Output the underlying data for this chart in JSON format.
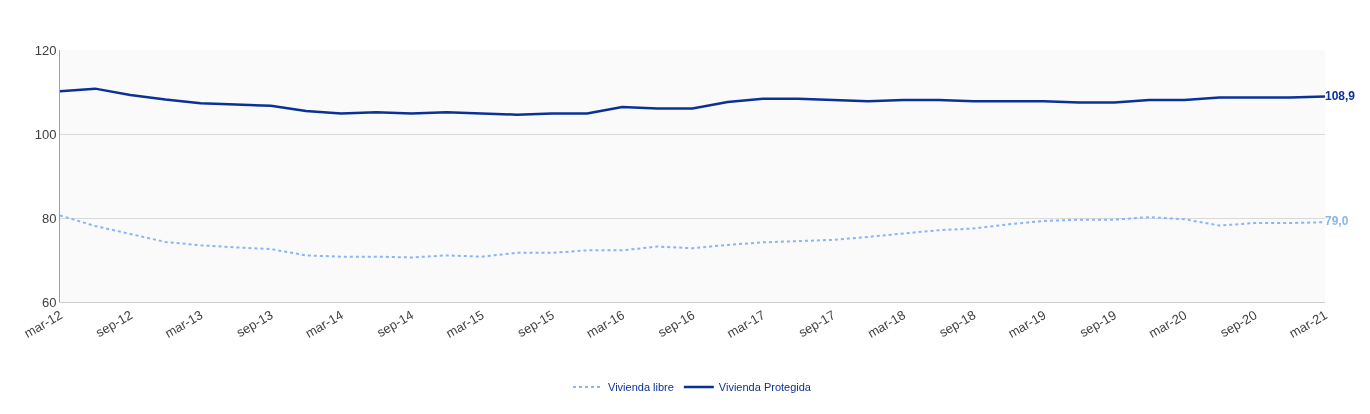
{
  "chart_data": {
    "type": "line",
    "categories": [
      "mar-12",
      null,
      "sep-12",
      null,
      "mar-13",
      null,
      "sep-13",
      null,
      "mar-14",
      null,
      "sep-14",
      null,
      "mar-15",
      null,
      "sep-15",
      null,
      "mar-16",
      null,
      "sep-16",
      null,
      "mar-17",
      null,
      "sep-17",
      null,
      "mar-18",
      null,
      "sep-18",
      null,
      "mar-19",
      null,
      "sep-19",
      null,
      "mar-20",
      null,
      "sep-20",
      null,
      "mar-21"
    ],
    "series": [
      {
        "name": "Vivienda libre",
        "color": "#8ab4f8",
        "line_style": "dotted",
        "values": [
          80.6,
          78.1,
          76.2,
          74.3,
          73.5,
          73.0,
          72.6,
          71.1,
          70.8,
          70.8,
          70.6,
          71.1,
          70.8,
          71.7,
          71.7,
          72.3,
          72.3,
          73.2,
          72.8,
          73.6,
          74.2,
          74.5,
          74.8,
          75.5,
          76.3,
          77.1,
          77.5,
          78.5,
          79.3,
          79.6,
          79.6,
          80.2,
          79.7,
          78.2,
          78.8,
          78.8,
          79.0
        ],
        "value_labels": [
          null,
          null,
          null,
          null,
          null,
          null,
          null,
          null,
          null,
          null,
          null,
          null,
          null,
          null,
          null,
          null,
          null,
          null,
          null,
          null,
          null,
          null,
          null,
          null,
          null,
          null,
          null,
          null,
          null,
          null,
          null,
          null,
          null,
          null,
          null,
          null,
          "79,0"
        ]
      },
      {
        "name": "Vivienda Protegida",
        "color": "#0a3296",
        "line_style": "solid",
        "values": [
          110.2,
          110.8,
          109.3,
          108.2,
          107.3,
          107.0,
          106.7,
          105.5,
          104.9,
          105.2,
          104.9,
          105.2,
          104.9,
          104.6,
          104.9,
          104.9,
          106.4,
          106.1,
          106.1,
          107.6,
          108.4,
          108.4,
          108.1,
          107.8,
          108.1,
          108.1,
          107.8,
          107.8,
          107.8,
          107.5,
          107.5,
          108.1,
          108.1,
          108.7,
          108.7,
          108.7,
          108.9
        ],
        "value_labels": [
          null,
          null,
          null,
          null,
          null,
          null,
          null,
          null,
          null,
          null,
          null,
          null,
          null,
          null,
          null,
          null,
          null,
          null,
          null,
          null,
          null,
          null,
          null,
          null,
          null,
          null,
          null,
          null,
          null,
          null,
          null,
          null,
          null,
          null,
          null,
          null,
          "108,9"
        ]
      }
    ],
    "ylim": [
      60,
      120
    ],
    "yticks": [
      60,
      80,
      100,
      120
    ],
    "grid": "y",
    "legend": "bottom",
    "marker": "none"
  }
}
